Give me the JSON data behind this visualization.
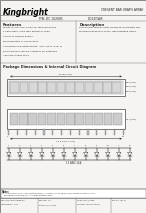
{
  "bg_color": "#e8e6e2",
  "page_color": "#f5f4f2",
  "brand": "Kingbright",
  "header_title": "CRESENT BAR GRAPH ARRAY",
  "part_number_left": "P/N: DC 102685",
  "part_number_right": "DD12GWB",
  "features_title": "Features",
  "features": [
    "Bright colors: clear or tinted, diffused lenses",
    "2.0mm pitch, ultra high efficiency LEDs",
    "Choice of viewing angles",
    "Mechanization of connections",
    "Compatible mounting height: .125\", pitch .078\" B",
    "End stackable version available for extended",
    "Absolute steady state"
  ],
  "description_title": "Description",
  "description": [
    "This bar/dot display units, designed and tested asis",
    "standard Phosphate Green Light Emitting Diode."
  ],
  "package_title": "Package Dimensions & Internal Circuit Diagram",
  "note_line1": "Note:",
  "note_line2": "1) All dimensions are in millimeters (inches). Tolerance is ±0.25(±0.010) unless otherwise noted.",
  "note_line3": "   Specifications are subject to change without notice.",
  "footer_row1": [
    "SPEC NO: DD-12GWB-03",
    "REV NO: 1.3",
    "DATE: 08/27/1999",
    "PAGE: 1 (OF 1)"
  ],
  "footer_row2": [
    "APPROVED: J. Lee",
    "DATE: 08/27/2003",
    "DRAWN: Yen-Wei Huang",
    ""
  ],
  "text_color": "#2a2a2a",
  "line_color": "#666666",
  "dim_color": "#888888"
}
